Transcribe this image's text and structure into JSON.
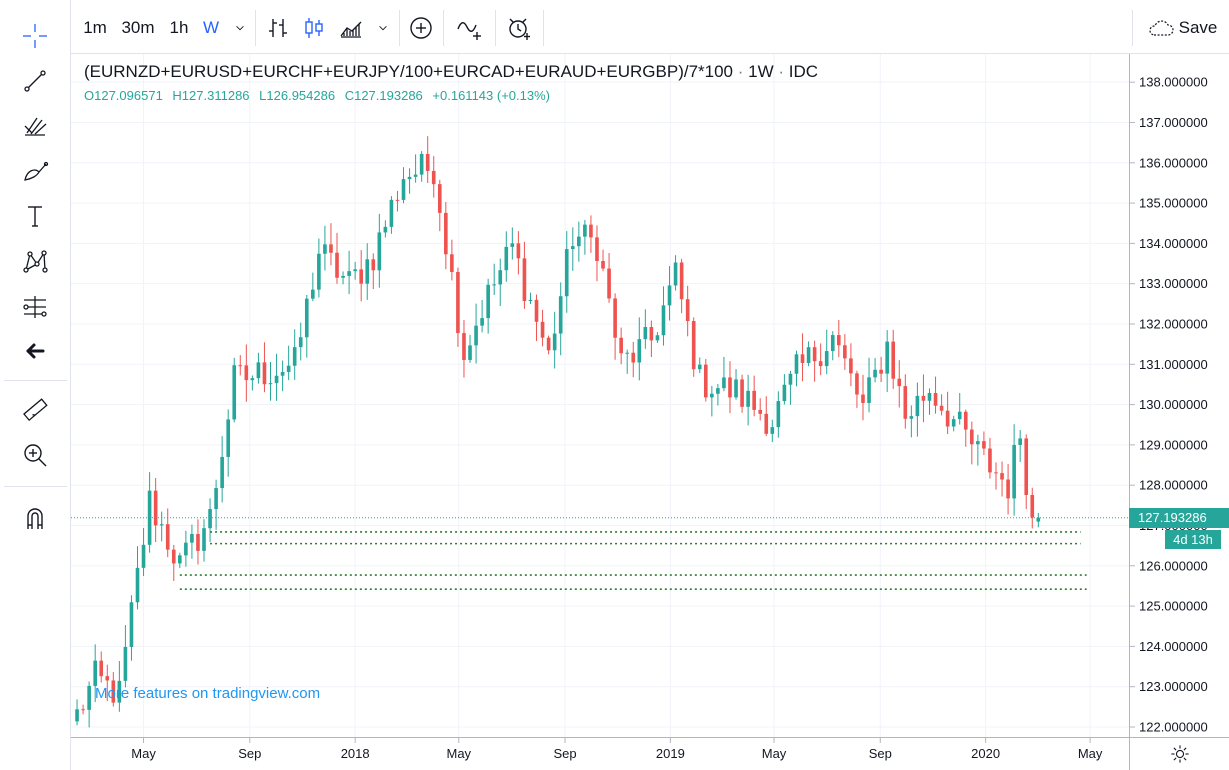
{
  "toolbar": {
    "intervals": [
      "1m",
      "30m",
      "1h",
      "W"
    ],
    "active_interval": "W",
    "save_label": "Save"
  },
  "legend": {
    "symbol": "(EURNZD+EURUSD+EURCHF+EURJPY/100+EURCAD+EURAUD+EURGBP)/7*100",
    "sep1": "·",
    "interval": "1W",
    "sep2": "·",
    "source": "IDC",
    "open": "O127.096571",
    "high": "H127.311286",
    "low": "L126.954286",
    "close": "C127.193286",
    "change": "+0.161143 (+0.13%)"
  },
  "watermark": "More features on tradingview.com",
  "current_price_label": "127.193286",
  "countdown_label": "4d 13h",
  "colors": {
    "up": "#26a69a",
    "down": "#ef5350",
    "hline": "#2e7d32",
    "accent": "#2962ff",
    "watermark": "#2196f3"
  },
  "chart_data": {
    "type": "candlestick",
    "ylim": [
      122.0,
      138.6
    ],
    "y_ticks": [
      "122.000000",
      "123.000000",
      "124.000000",
      "125.000000",
      "126.000000",
      "127.000000",
      "128.000000",
      "129.000000",
      "130.000000",
      "131.000000",
      "132.000000",
      "133.000000",
      "134.000000",
      "135.000000",
      "136.000000",
      "137.000000",
      "138.000000"
    ],
    "x_ticks": [
      "May",
      "Sep",
      "2018",
      "May",
      "Sep",
      "2019",
      "May",
      "Sep",
      "2020",
      "May"
    ],
    "x_start": "2017-02-06",
    "x_end": "2020-06-15",
    "current_price": 127.193286,
    "horizontal_lines": [
      {
        "from": "2017-07-17",
        "to": "2020-04-20",
        "price": 126.84
      },
      {
        "from": "2017-07-17",
        "to": "2020-04-20",
        "price": 126.55
      },
      {
        "from": "2017-06-12",
        "to": "2020-04-27",
        "price": 125.77
      },
      {
        "from": "2017-06-12",
        "to": "2020-04-27",
        "price": 125.42
      }
    ],
    "anchors": [
      {
        "date": "2017-02-13",
        "price": 122.3
      },
      {
        "date": "2017-03-06",
        "price": 123.2
      },
      {
        "date": "2017-04-03",
        "price": 122.8
      },
      {
        "date": "2017-04-17",
        "price": 124.8
      },
      {
        "date": "2017-05-08",
        "price": 127.6
      },
      {
        "date": "2017-06-12",
        "price": 126.0
      },
      {
        "date": "2017-07-17",
        "price": 127.2
      },
      {
        "date": "2017-08-14",
        "price": 130.6
      },
      {
        "date": "2017-09-18",
        "price": 130.8
      },
      {
        "date": "2017-10-23",
        "price": 131.0
      },
      {
        "date": "2017-11-20",
        "price": 133.8
      },
      {
        "date": "2017-12-25",
        "price": 133.0
      },
      {
        "date": "2018-01-22",
        "price": 133.7
      },
      {
        "date": "2018-02-26",
        "price": 135.7
      },
      {
        "date": "2018-04-02",
        "price": 135.9
      },
      {
        "date": "2018-05-07",
        "price": 131.3
      },
      {
        "date": "2018-05-28",
        "price": 132.4
      },
      {
        "date": "2018-07-02",
        "price": 133.9
      },
      {
        "date": "2018-08-13",
        "price": 131.2
      },
      {
        "date": "2018-09-10",
        "price": 134.2
      },
      {
        "date": "2018-10-08",
        "price": 134.0
      },
      {
        "date": "2018-11-05",
        "price": 131.0
      },
      {
        "date": "2018-12-10",
        "price": 131.6
      },
      {
        "date": "2019-01-07",
        "price": 133.2
      },
      {
        "date": "2019-02-04",
        "price": 130.6
      },
      {
        "date": "2019-03-18",
        "price": 130.3
      },
      {
        "date": "2019-04-29",
        "price": 129.6
      },
      {
        "date": "2019-05-27",
        "price": 130.8
      },
      {
        "date": "2019-07-08",
        "price": 131.7
      },
      {
        "date": "2019-08-12",
        "price": 129.9
      },
      {
        "date": "2019-09-09",
        "price": 131.5
      },
      {
        "date": "2019-09-30",
        "price": 129.7
      },
      {
        "date": "2019-10-28",
        "price": 130.4
      },
      {
        "date": "2019-11-25",
        "price": 129.6
      },
      {
        "date": "2019-12-23",
        "price": 128.8
      },
      {
        "date": "2020-01-27",
        "price": 128.0
      },
      {
        "date": "2020-02-10",
        "price": 129.3
      },
      {
        "date": "2020-02-24",
        "price": 127.1
      }
    ],
    "last_candle": {
      "date": "2020-03-02",
      "open": 127.096571,
      "high": 127.311286,
      "low": 126.954286,
      "close": 127.193286
    }
  }
}
